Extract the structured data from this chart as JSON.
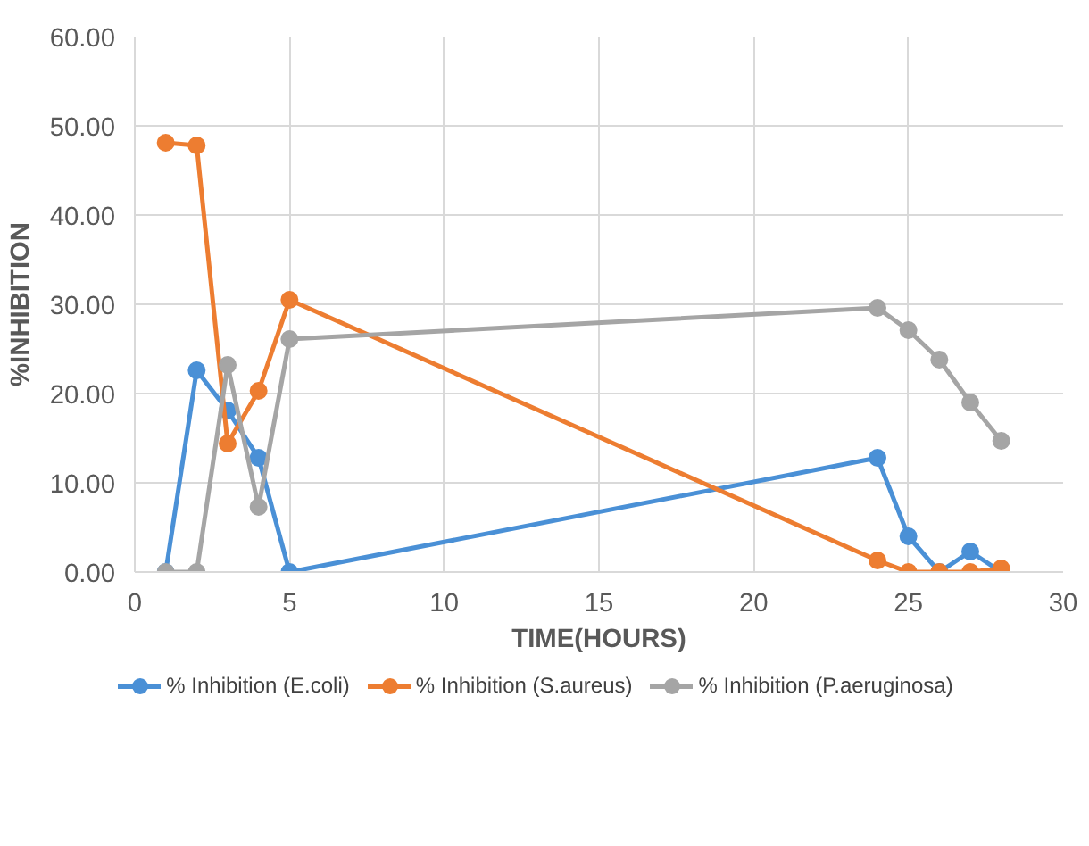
{
  "chart_data": {
    "type": "line",
    "xlabel": "TIME(HOURS)",
    "ylabel": "%INHIBITION",
    "x": [
      1,
      2,
      3,
      4,
      5,
      24,
      25,
      26,
      27,
      28
    ],
    "series": [
      {
        "name": "% Inhibition (E.coli)",
        "color": "#4a90d6",
        "values": [
          0,
          22.6,
          18.1,
          12.8,
          0,
          12.8,
          4.0,
          0,
          2.3,
          0
        ]
      },
      {
        "name": "% Inhibition (S.aureus)",
        "color": "#ed7d31",
        "values": [
          48.1,
          47.8,
          14.4,
          20.3,
          30.5,
          1.3,
          0,
          0,
          0,
          0.4
        ]
      },
      {
        "name": "% Inhibition (P.aeruginosa)",
        "color": "#a5a5a5",
        "values": [
          0,
          0,
          23.2,
          7.3,
          26.1,
          29.6,
          27.1,
          23.8,
          19.0,
          14.7
        ]
      }
    ],
    "xlim": [
      0,
      30
    ],
    "xticks": [
      0,
      5,
      10,
      15,
      20,
      25,
      30
    ],
    "ylim": [
      0,
      60
    ],
    "yticks": [
      {
        "value": 0,
        "label": "0.00"
      },
      {
        "value": 10,
        "label": "10.00"
      },
      {
        "value": 20,
        "label": "20.00"
      },
      {
        "value": 30,
        "label": "30.00"
      },
      {
        "value": 40,
        "label": "40.00"
      },
      {
        "value": 50,
        "label": "50.00"
      },
      {
        "value": 60,
        "label": "60.00"
      }
    ],
    "grid": true,
    "legend": "bottom",
    "marker": "circle",
    "line_style": "solid"
  }
}
